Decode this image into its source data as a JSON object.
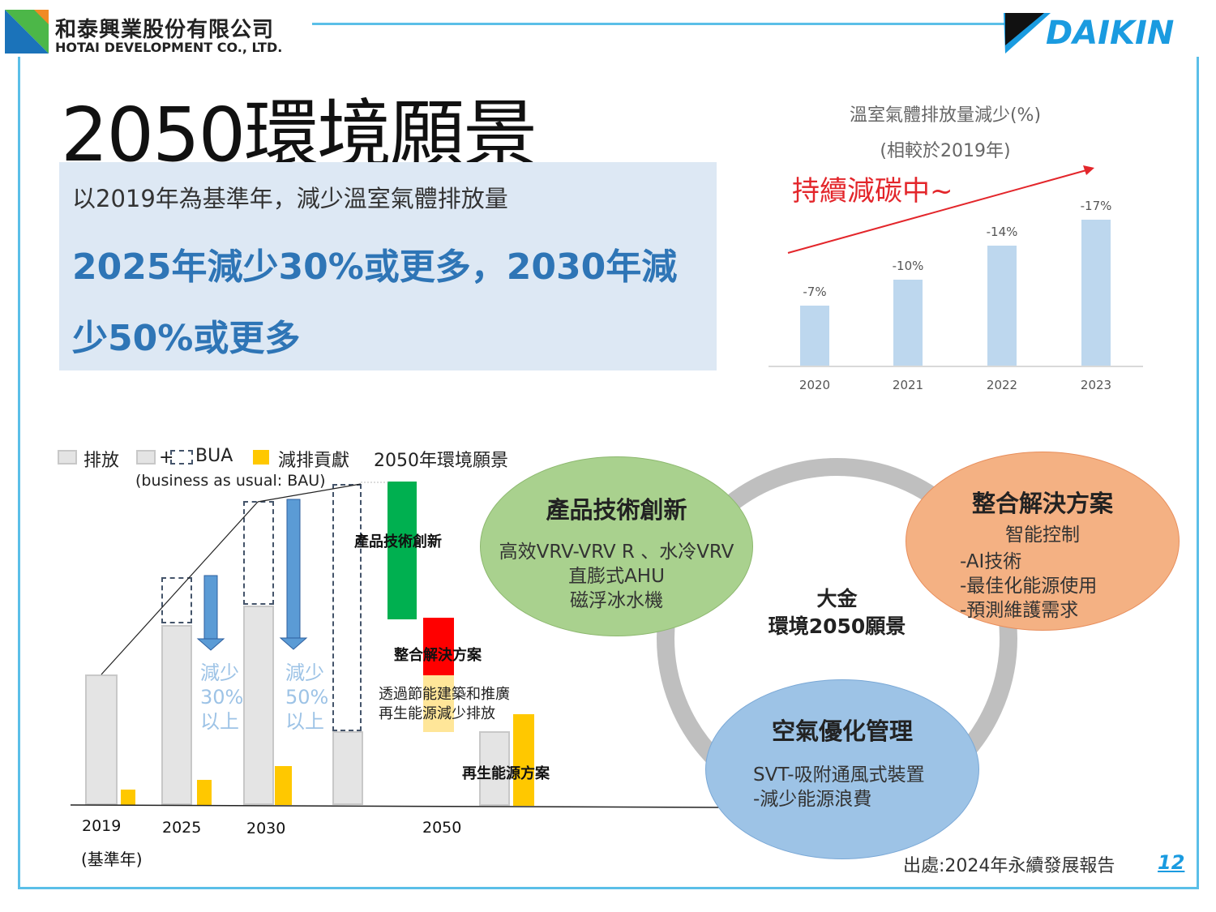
{
  "header": {
    "company_cn": "和泰興業股份有限公司",
    "company_en": "HOTAI DEVELOPMENT CO., LTD.",
    "brand": "DAIKIN"
  },
  "title": "2050環境願景",
  "summary": {
    "line1": "以2019年為基準年，減少溫室氣體排放量",
    "line2": "2025年減少30%或更多，2030年減少50%或更多"
  },
  "chart_data": {
    "type": "bar",
    "title": "溫室氣體排放量減少(%)",
    "subtitle": "(相較於2019年)",
    "annotation": "持續減碳中~",
    "categories": [
      "2020",
      "2021",
      "2022",
      "2023"
    ],
    "values": [
      -7,
      -10,
      -14,
      -17
    ],
    "labels": [
      "-7%",
      "-10%",
      "-14%",
      "-17%"
    ],
    "ylim": [
      0,
      -20
    ],
    "colors": {
      "bar": "#bdd7ee",
      "trend": "#e3262b"
    }
  },
  "roadmap": {
    "legend": {
      "emission": "排放",
      "bua": "+",
      "bua_label": "BUA",
      "bau_note": "(business as usual: BAU)",
      "contribution": "減排貢獻",
      "vision": "2050年環境願景"
    },
    "years": [
      "2019",
      "2025",
      "2030",
      "2050"
    ],
    "base_note": "(基準年)",
    "reduce30": [
      "減少",
      "30%",
      "以上"
    ],
    "reduce50": [
      "減少",
      "50%",
      "以上"
    ],
    "product_innovation": "產品技術創新",
    "integrated_solution": "整合解決方案",
    "building_note": [
      "透過節能建築和推廣",
      "再生能源減少排放"
    ],
    "renewable": "再生能源方案"
  },
  "vision": {
    "center": [
      "大金",
      "環境2050願景"
    ],
    "product": {
      "title": "產品技術創新",
      "lines": [
        "高效VRV-VRV R 、水冷VRV",
        "直膨式AHU",
        "磁浮冰水機"
      ]
    },
    "solution": {
      "title": "整合解決方案",
      "sub": "智能控制",
      "lines": [
        "-AI技術",
        "-最佳化能源使用",
        "-預測維護需求"
      ]
    },
    "air": {
      "title": "空氣優化管理",
      "lines": [
        "SVT-吸附通風式裝置",
        "-減少能源浪費"
      ]
    }
  },
  "footer": {
    "source": "出處:2024年永續發展報告",
    "page": "12"
  }
}
